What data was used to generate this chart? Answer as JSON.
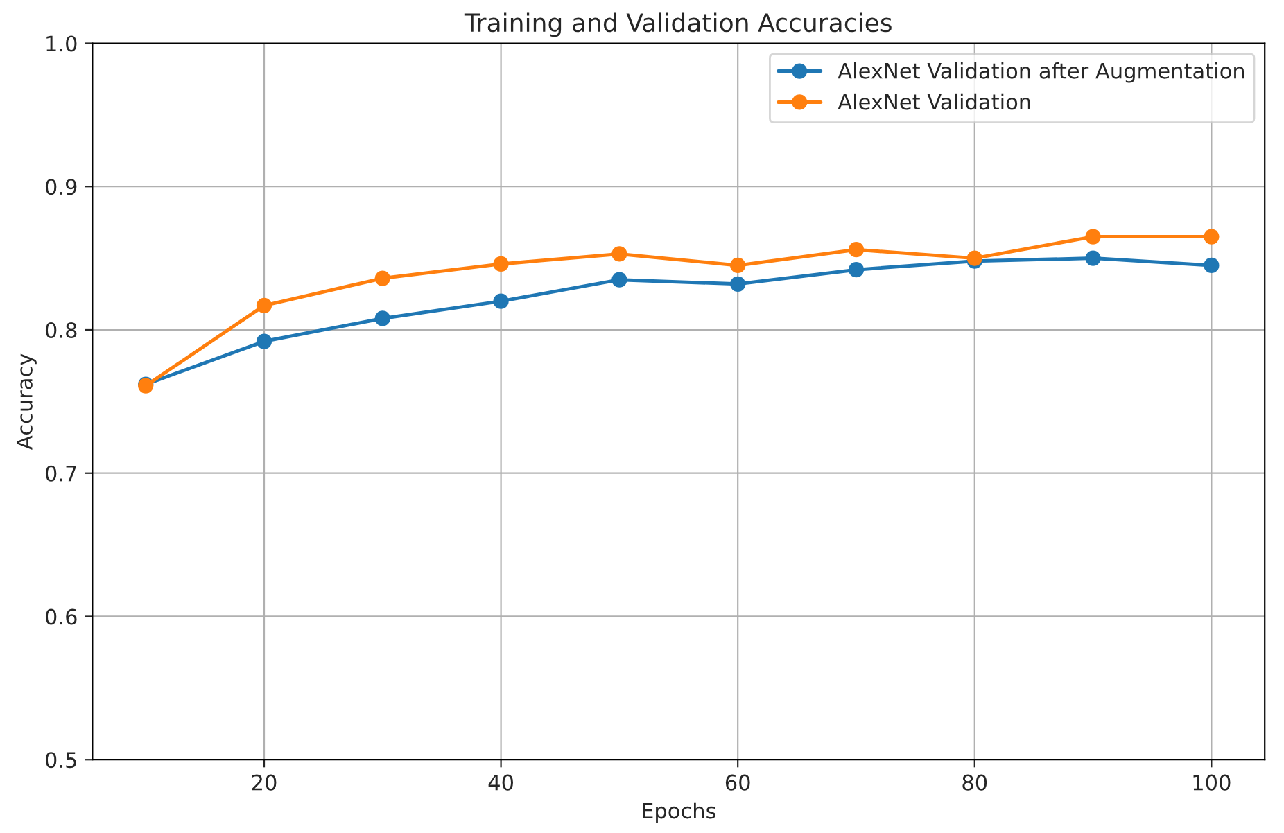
{
  "chart_data": {
    "type": "line",
    "title": "Training and Validation Accuracies",
    "xlabel": "Epochs",
    "ylabel": "Accuracy",
    "x": [
      10,
      20,
      30,
      40,
      50,
      60,
      70,
      80,
      90,
      100
    ],
    "series": [
      {
        "name": "AlexNet Validation after Augmentation",
        "color": "#1f77b4",
        "values": [
          0.762,
          0.792,
          0.808,
          0.82,
          0.835,
          0.832,
          0.842,
          0.848,
          0.85,
          0.845
        ]
      },
      {
        "name": "AlexNet Validation",
        "color": "#ff7f0e",
        "values": [
          0.761,
          0.817,
          0.836,
          0.846,
          0.853,
          0.845,
          0.856,
          0.85,
          0.865,
          0.865
        ]
      }
    ],
    "xlim": [
      5.5,
      104.5
    ],
    "xticks": [
      20,
      40,
      60,
      80,
      100
    ],
    "ylim": [
      0.5,
      1.0
    ],
    "yticks": [
      0.5,
      0.6,
      0.7,
      0.8,
      0.9,
      {
        "value": 1,
        "label": "1.0"
      }
    ],
    "grid": true,
    "legend": "top right",
    "marker": "circle",
    "line_style": "solid"
  }
}
